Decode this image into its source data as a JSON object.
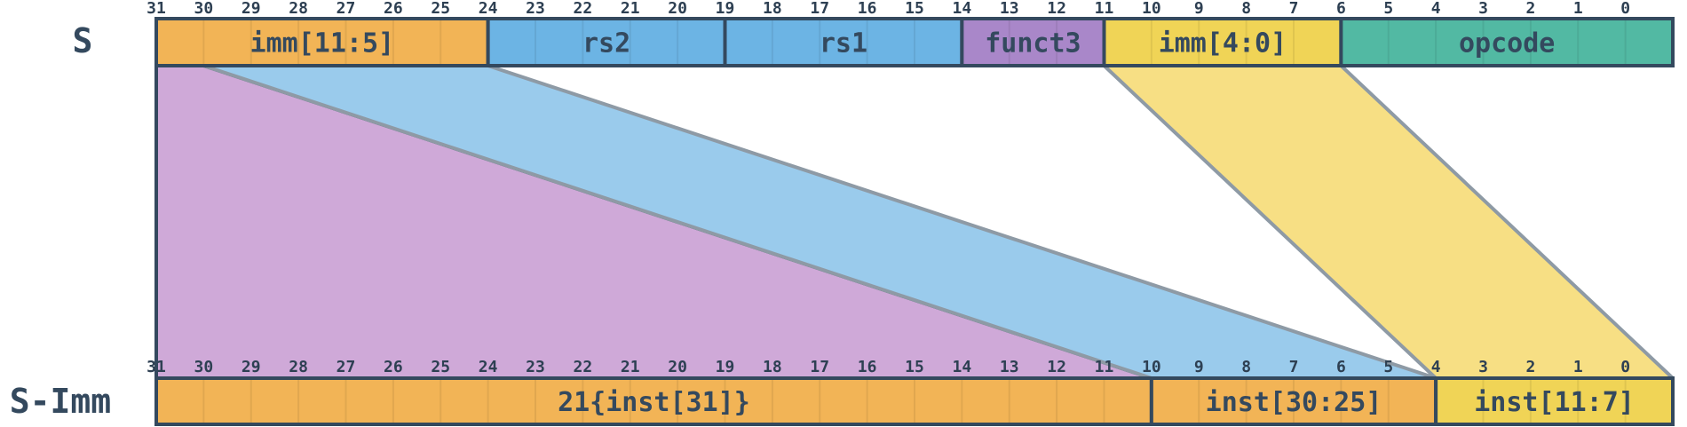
{
  "colors": {
    "orange": "#f2b456",
    "blue": "#6cb4e4",
    "purple": "#a987c9",
    "yellow": "#f0d456",
    "teal": "#52b9a3",
    "light_purple": "#cfa9d8",
    "light_blue": "#9acbec",
    "light_yellow": "#f7df84",
    "border_dark": "#34495e",
    "border_grey": "#8e9aa5",
    "text": "#34495e"
  },
  "top_row": {
    "label": "S",
    "bit_labels": [
      "31",
      "30",
      "29",
      "28",
      "27",
      "26",
      "25",
      "24",
      "23",
      "22",
      "21",
      "20",
      "19",
      "18",
      "17",
      "16",
      "15",
      "14",
      "13",
      "12",
      "11",
      "10",
      "9",
      "8",
      "7",
      "6",
      "5",
      "4",
      "3",
      "2",
      "1",
      "0"
    ],
    "fields": [
      {
        "label": "imm[11:5]",
        "hi": 31,
        "lo": 25,
        "color": "#f2b456"
      },
      {
        "label": "rs2",
        "hi": 24,
        "lo": 20,
        "color": "#6cb4e4"
      },
      {
        "label": "rs1",
        "hi": 19,
        "lo": 15,
        "color": "#6cb4e4"
      },
      {
        "label": "funct3",
        "hi": 14,
        "lo": 12,
        "color": "#a987c9"
      },
      {
        "label": "imm[4:0]",
        "hi": 11,
        "lo": 7,
        "color": "#f0d456"
      },
      {
        "label": "opcode",
        "hi": 6,
        "lo": 0,
        "color": "#52b9a3"
      }
    ]
  },
  "bottom_row": {
    "label": "S-Imm",
    "bit_labels": [
      "31",
      "30",
      "29",
      "28",
      "27",
      "26",
      "25",
      "24",
      "23",
      "22",
      "21",
      "20",
      "19",
      "18",
      "17",
      "16",
      "15",
      "14",
      "13",
      "12",
      "11",
      "10",
      "9",
      "8",
      "7",
      "6",
      "5",
      "4",
      "3",
      "2",
      "1",
      "0"
    ],
    "fields": [
      {
        "label": "21{inst[31]}",
        "hi": 31,
        "lo": 11,
        "color": "#f2b456"
      },
      {
        "label": "inst[30:25]",
        "hi": 10,
        "lo": 5,
        "color": "#f2b456"
      },
      {
        "label": "inst[11:7]",
        "hi": 4,
        "lo": 0,
        "color": "#f0d456"
      }
    ]
  },
  "mappings": [
    {
      "name": "sign-extension-band",
      "from": {
        "hi": 31,
        "lo": 31
      },
      "to": {
        "hi": 31,
        "lo": 11
      },
      "color": "#cfa9d8",
      "edge": "#34495e"
    },
    {
      "name": "imm-11-5-band",
      "from": {
        "hi": 30,
        "lo": 25
      },
      "to": {
        "hi": 10,
        "lo": 5
      },
      "color": "#9acbec",
      "edge": "#8e9aa5"
    },
    {
      "name": "imm-4-0-band",
      "from": {
        "hi": 11,
        "lo": 7
      },
      "to": {
        "hi": 4,
        "lo": 0
      },
      "color": "#f7df84",
      "edge": "#8e9aa5"
    }
  ]
}
